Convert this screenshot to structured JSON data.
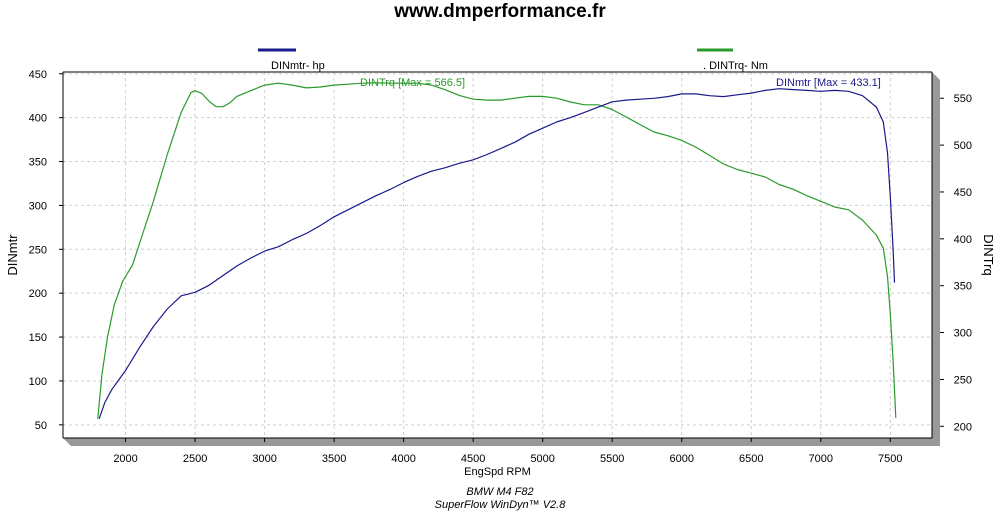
{
  "header": {
    "title": "www.dmperformance.fr"
  },
  "footer": {
    "line1": "BMW M4 F82",
    "line2": "SuperFlow WinDyn™ V2.8"
  },
  "colors": {
    "power": "#1a1a8c",
    "torque": "#2a9a2a",
    "plot_shadow": "#999999",
    "grid": "#cfcfcf"
  },
  "chart_data": {
    "type": "line",
    "xlabel": "EngSpd  RPM",
    "ylabel_left": "DINmtr",
    "ylabel_right": "DINTrq",
    "xlim": [
      1550,
      7800
    ],
    "ylim_left": [
      35,
      452
    ],
    "ylim_right": [
      187.5,
      578
    ],
    "x_ticks": [
      2000,
      2500,
      3000,
      3500,
      4000,
      4500,
      5000,
      5500,
      6000,
      6500,
      7000,
      7500
    ],
    "y_ticks_left": [
      50,
      100,
      150,
      200,
      250,
      300,
      350,
      400,
      450
    ],
    "y_ticks_right": [
      200,
      250,
      300,
      350,
      400,
      450,
      500,
      550
    ],
    "grid": true,
    "legend": [
      {
        "label": "DINmtr-  hp",
        "color": "#1a1a8c"
      },
      {
        "label": ". DINTrq-  Nm",
        "color": "#2a9a2a"
      }
    ],
    "series": [
      {
        "name": "DINmtr",
        "unit": "hp",
        "axis": "left",
        "max_label": "DINmtr [Max = 433.1]",
        "points": [
          [
            1810,
            57
          ],
          [
            1850,
            75
          ],
          [
            1900,
            90
          ],
          [
            2000,
            112
          ],
          [
            2100,
            138
          ],
          [
            2200,
            162
          ],
          [
            2300,
            182
          ],
          [
            2400,
            197
          ],
          [
            2500,
            201
          ],
          [
            2600,
            209
          ],
          [
            2700,
            220
          ],
          [
            2800,
            231
          ],
          [
            2900,
            240
          ],
          [
            3000,
            248
          ],
          [
            3100,
            253
          ],
          [
            3200,
            261
          ],
          [
            3300,
            268
          ],
          [
            3400,
            277
          ],
          [
            3500,
            287
          ],
          [
            3600,
            295
          ],
          [
            3700,
            303
          ],
          [
            3800,
            311
          ],
          [
            3900,
            318
          ],
          [
            4000,
            326
          ],
          [
            4100,
            333
          ],
          [
            4200,
            339
          ],
          [
            4300,
            343
          ],
          [
            4400,
            348
          ],
          [
            4500,
            352
          ],
          [
            4600,
            358
          ],
          [
            4700,
            365
          ],
          [
            4800,
            372
          ],
          [
            4900,
            381
          ],
          [
            5000,
            388
          ],
          [
            5100,
            395
          ],
          [
            5200,
            400
          ],
          [
            5300,
            406
          ],
          [
            5400,
            412
          ],
          [
            5500,
            418
          ],
          [
            5600,
            420
          ],
          [
            5700,
            421
          ],
          [
            5800,
            422
          ],
          [
            5900,
            424
          ],
          [
            6000,
            427
          ],
          [
            6100,
            427
          ],
          [
            6200,
            425
          ],
          [
            6300,
            424
          ],
          [
            6400,
            426
          ],
          [
            6500,
            428
          ],
          [
            6600,
            431
          ],
          [
            6700,
            433
          ],
          [
            6800,
            432
          ],
          [
            6900,
            431
          ],
          [
            7000,
            430
          ],
          [
            7100,
            431
          ],
          [
            7200,
            430
          ],
          [
            7300,
            425
          ],
          [
            7400,
            412
          ],
          [
            7450,
            395
          ],
          [
            7480,
            360
          ],
          [
            7500,
            310
          ],
          [
            7520,
            250
          ],
          [
            7530,
            212
          ]
        ]
      },
      {
        "name": "DINTrq",
        "unit": "Nm",
        "axis": "right",
        "max_label": "DINTrq [Max = 566.5]",
        "points": [
          [
            1800,
            208
          ],
          [
            1830,
            255
          ],
          [
            1870,
            295
          ],
          [
            1920,
            330
          ],
          [
            1980,
            355
          ],
          [
            2050,
            372
          ],
          [
            2100,
            395
          ],
          [
            2200,
            440
          ],
          [
            2300,
            490
          ],
          [
            2400,
            535
          ],
          [
            2470,
            556
          ],
          [
            2500,
            558
          ],
          [
            2550,
            555
          ],
          [
            2600,
            547
          ],
          [
            2650,
            541
          ],
          [
            2700,
            541
          ],
          [
            2750,
            545
          ],
          [
            2800,
            552
          ],
          [
            2900,
            558
          ],
          [
            3000,
            564
          ],
          [
            3100,
            566
          ],
          [
            3200,
            564
          ],
          [
            3300,
            561
          ],
          [
            3400,
            562
          ],
          [
            3500,
            564
          ],
          [
            3600,
            565
          ],
          [
            3700,
            566
          ],
          [
            3800,
            566.5
          ],
          [
            3900,
            566
          ],
          [
            4000,
            566
          ],
          [
            4100,
            566
          ],
          [
            4200,
            564
          ],
          [
            4300,
            559
          ],
          [
            4400,
            553
          ],
          [
            4500,
            549
          ],
          [
            4600,
            548
          ],
          [
            4700,
            548
          ],
          [
            4800,
            550
          ],
          [
            4900,
            552
          ],
          [
            5000,
            552
          ],
          [
            5100,
            550
          ],
          [
            5200,
            546
          ],
          [
            5300,
            543
          ],
          [
            5400,
            543
          ],
          [
            5500,
            538
          ],
          [
            5600,
            530
          ],
          [
            5700,
            522
          ],
          [
            5800,
            514
          ],
          [
            5900,
            510
          ],
          [
            6000,
            505
          ],
          [
            6100,
            498
          ],
          [
            6200,
            489
          ],
          [
            6300,
            480
          ],
          [
            6400,
            474
          ],
          [
            6500,
            470
          ],
          [
            6600,
            466
          ],
          [
            6700,
            458
          ],
          [
            6800,
            453
          ],
          [
            6900,
            446
          ],
          [
            7000,
            440
          ],
          [
            7100,
            434
          ],
          [
            7200,
            431
          ],
          [
            7300,
            420
          ],
          [
            7400,
            404
          ],
          [
            7450,
            390
          ],
          [
            7480,
            360
          ],
          [
            7500,
            320
          ],
          [
            7520,
            270
          ],
          [
            7540,
            209
          ]
        ]
      }
    ]
  }
}
